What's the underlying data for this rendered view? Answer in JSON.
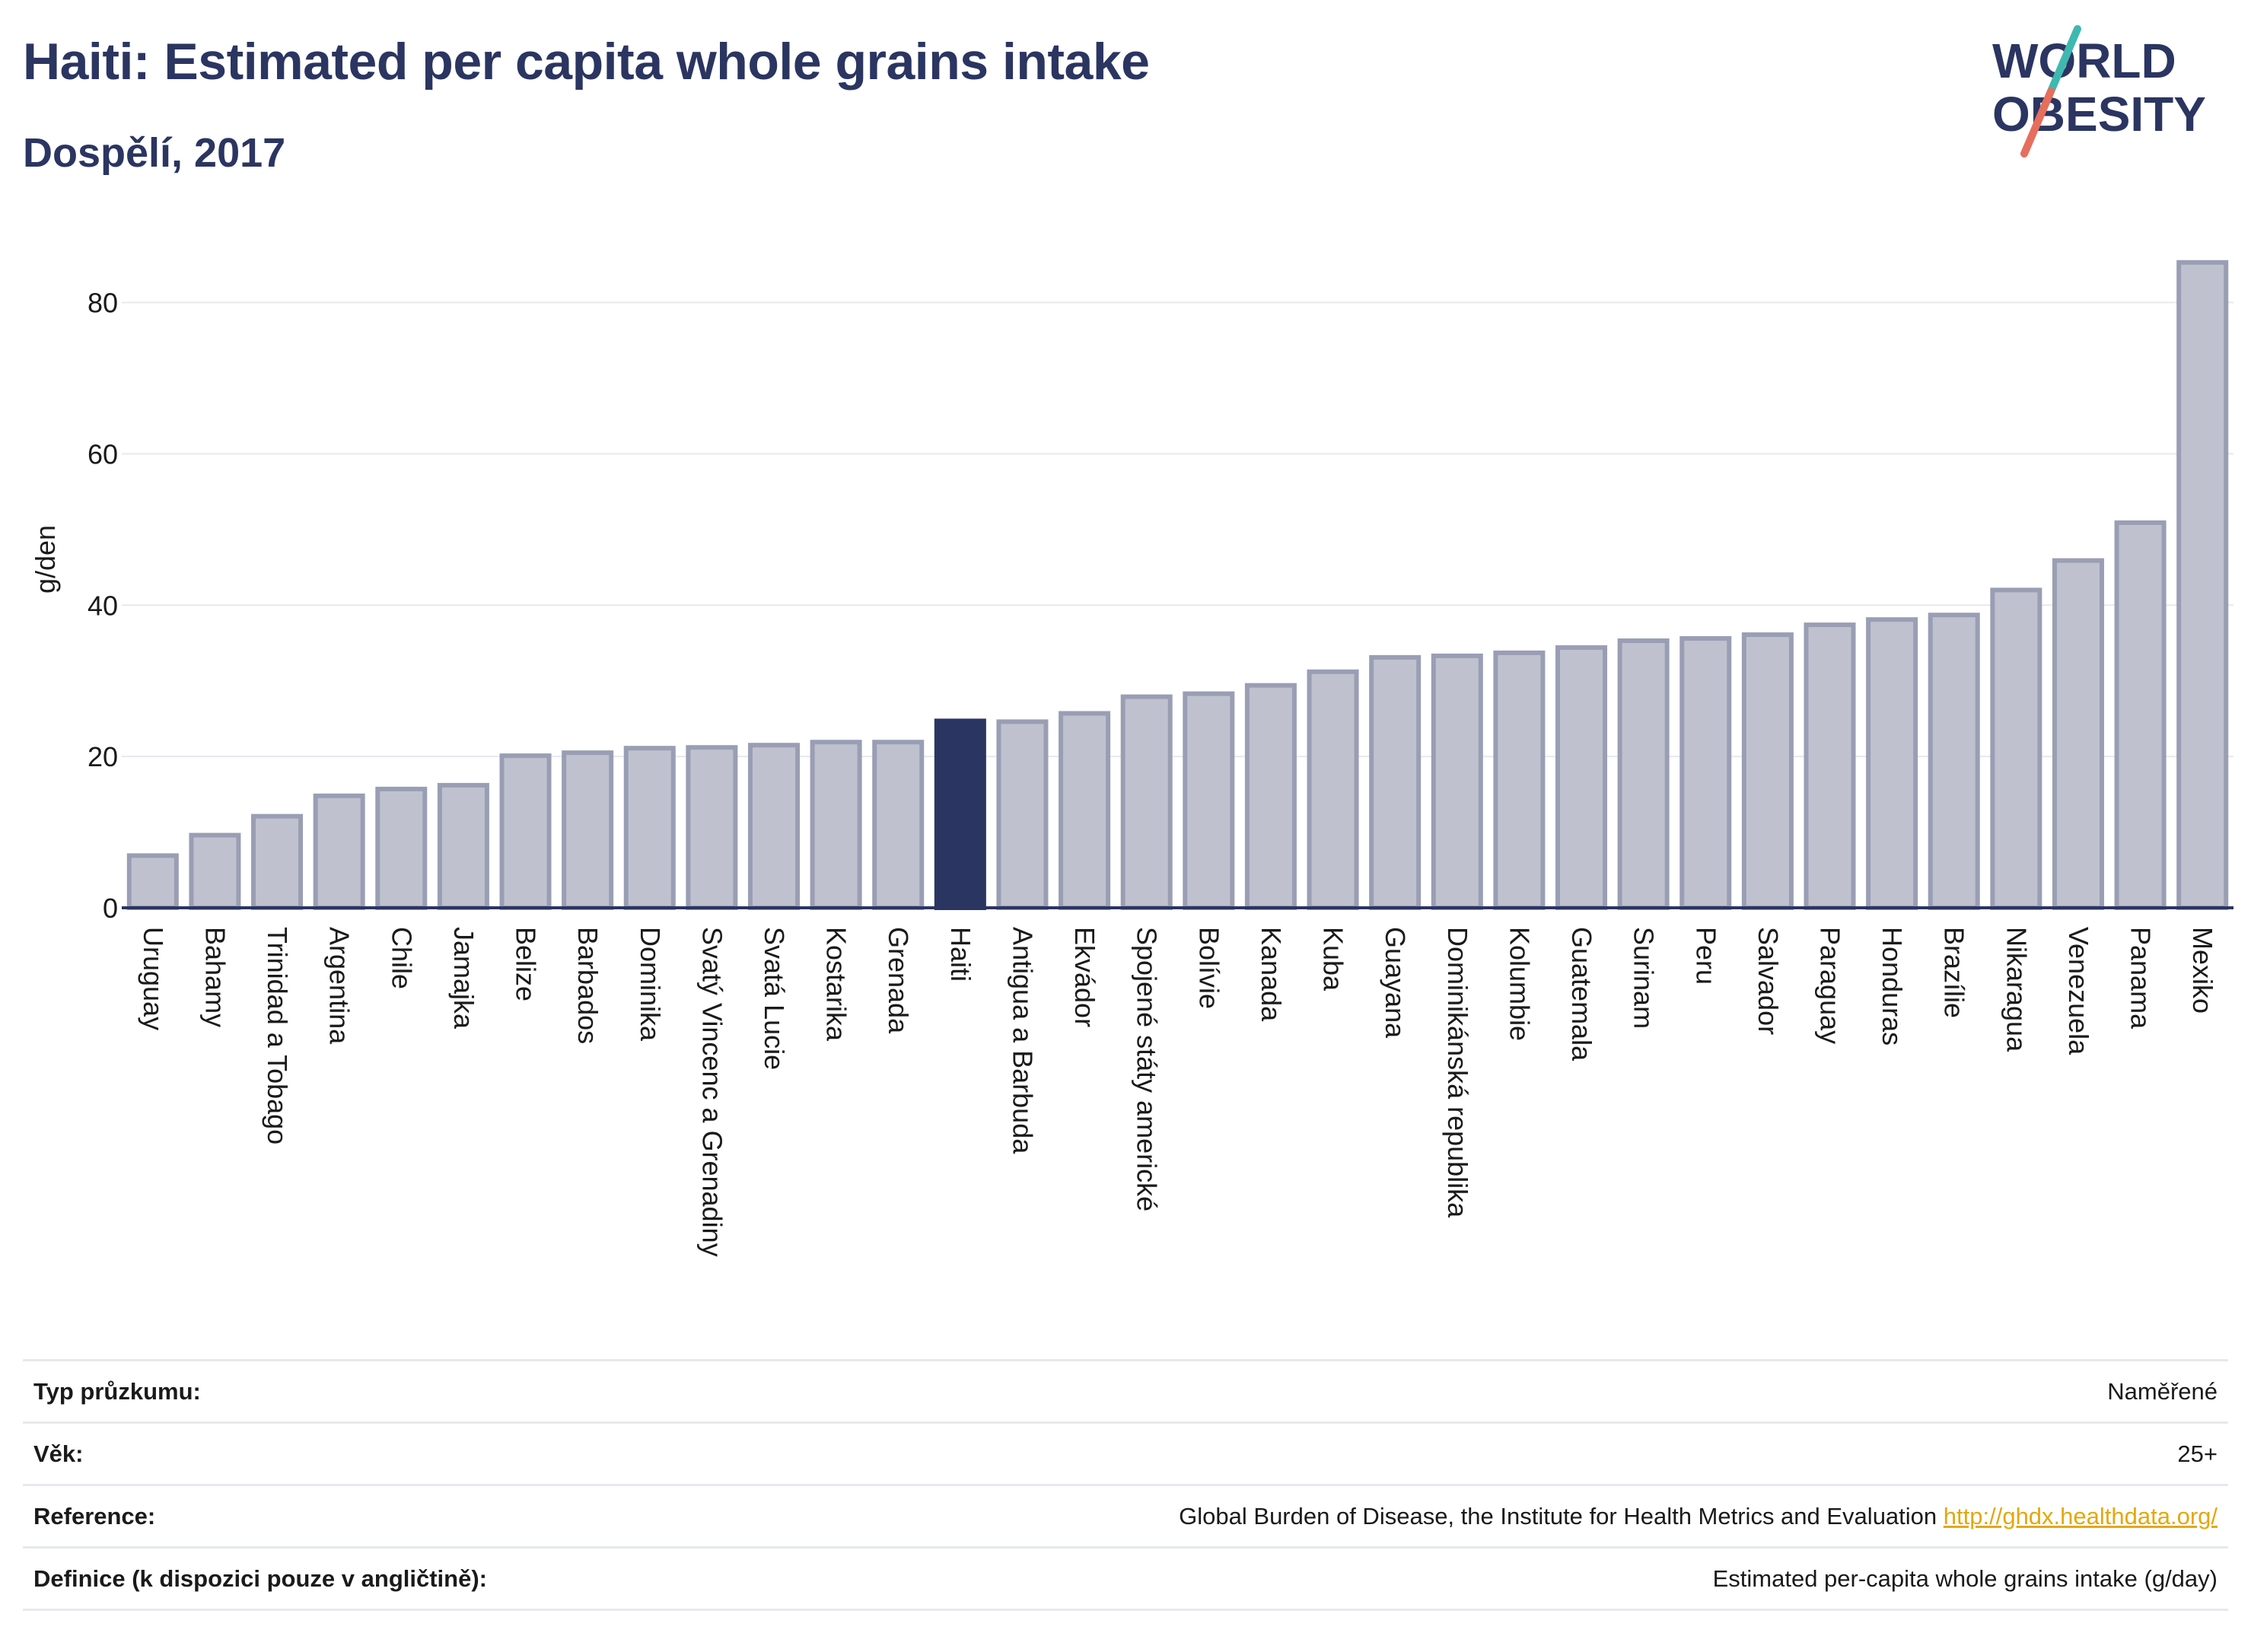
{
  "header": {
    "title": "Haiti: Estimated per capita whole grains intake",
    "subtitle": "Dospělí, 2017"
  },
  "logo": {
    "line1": "WORLD",
    "line2": "OBESITY"
  },
  "colors": {
    "highlight_bar": "#2b3561",
    "bar_fill": "#bfc2ce",
    "bar_stroke": "#9a9eb4",
    "title": "#2b3561",
    "grid": "#e6e9ee",
    "link": "#e3a80b",
    "logo_teal": "#3fb8b0",
    "logo_coral": "#e66e5c"
  },
  "chart_data": {
    "type": "bar",
    "ylabel": "g/den",
    "ylim": [
      0,
      88
    ],
    "yticks": [
      0,
      20,
      40,
      60,
      80
    ],
    "grid": true,
    "highlight": "Haiti",
    "categories": [
      "Uruguay",
      "Bahamy",
      "Trinidad a Tobago",
      "Argentina",
      "Chile",
      "Jamajka",
      "Belize",
      "Barbados",
      "Dominika",
      "Svatý Vincenc a Grenadiny",
      "Svatá Lucie",
      "Kostarika",
      "Grenada",
      "Haiti",
      "Antigua a Barbuda",
      "Ekvádor",
      "Spojené státy americké",
      "Bolívie",
      "Kanada",
      "Kuba",
      "Guayana",
      "Dominikánská republika",
      "Kolumbie",
      "Guatemala",
      "Surinam",
      "Peru",
      "Salvador",
      "Paraguay",
      "Honduras",
      "Brazílie",
      "Nikaragua",
      "Venezuela",
      "Panama",
      "Mexiko"
    ],
    "values": [
      6.9,
      9.6,
      12.1,
      14.8,
      15.7,
      16.2,
      20.1,
      20.5,
      21.1,
      21.2,
      21.5,
      21.9,
      21.9,
      24.7,
      24.6,
      25.7,
      27.9,
      28.3,
      29.4,
      31.2,
      33.1,
      33.3,
      33.7,
      34.4,
      35.3,
      35.6,
      36.1,
      37.4,
      38.1,
      38.7,
      42.0,
      45.9,
      50.9,
      85.3
    ]
  },
  "info_table": [
    {
      "label": "Typ průzkumu:",
      "value": "Naměřené"
    },
    {
      "label": "Věk:",
      "value": "25+"
    },
    {
      "label": "Reference:",
      "value": "Global Burden of Disease, the Institute for Health Metrics and Evaluation",
      "link": "http://ghdx.healthdata.org/"
    },
    {
      "label": "Definice (k dispozici pouze v angličtině):",
      "value": "Estimated per-capita whole grains intake (g/day)"
    }
  ]
}
